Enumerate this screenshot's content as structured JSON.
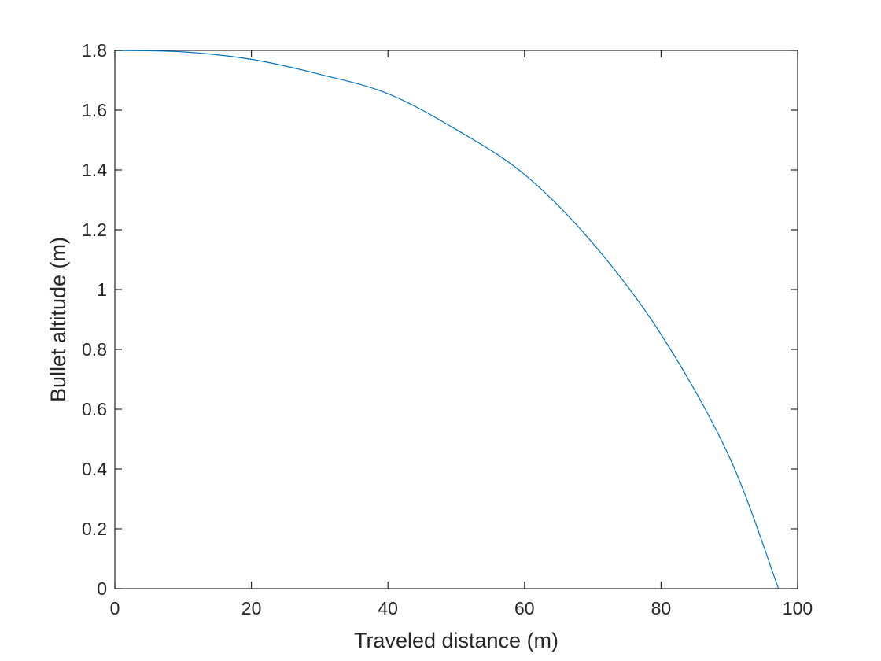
{
  "chart_data": {
    "type": "line",
    "title": "",
    "xlabel": "Traveled distance (m)",
    "ylabel": "Bullet altitude (m)",
    "xlim": [
      0,
      100
    ],
    "ylim": [
      0,
      1.8
    ],
    "x_ticks": [
      0,
      20,
      40,
      60,
      80,
      100
    ],
    "y_ticks": [
      0,
      0.2,
      0.4,
      0.6,
      0.8,
      1,
      1.2,
      1.4,
      1.6,
      1.8
    ],
    "x_tick_labels": [
      "0",
      "20",
      "40",
      "60",
      "80",
      "100"
    ],
    "y_tick_labels": [
      "0",
      "0.2",
      "0.4",
      "0.6",
      "0.8",
      "1",
      "1.2",
      "1.4",
      "1.6",
      "1.8"
    ],
    "grid": false,
    "box": true,
    "series": [
      {
        "color": "#0072BD",
        "x": [
          0,
          10,
          20,
          30,
          40,
          50,
          60,
          70,
          80,
          90,
          97.2
        ],
        "y": [
          1.8,
          1.795,
          1.77,
          1.72,
          1.655,
          1.535,
          1.385,
          1.155,
          0.85,
          0.44,
          0.0
        ]
      }
    ]
  }
}
